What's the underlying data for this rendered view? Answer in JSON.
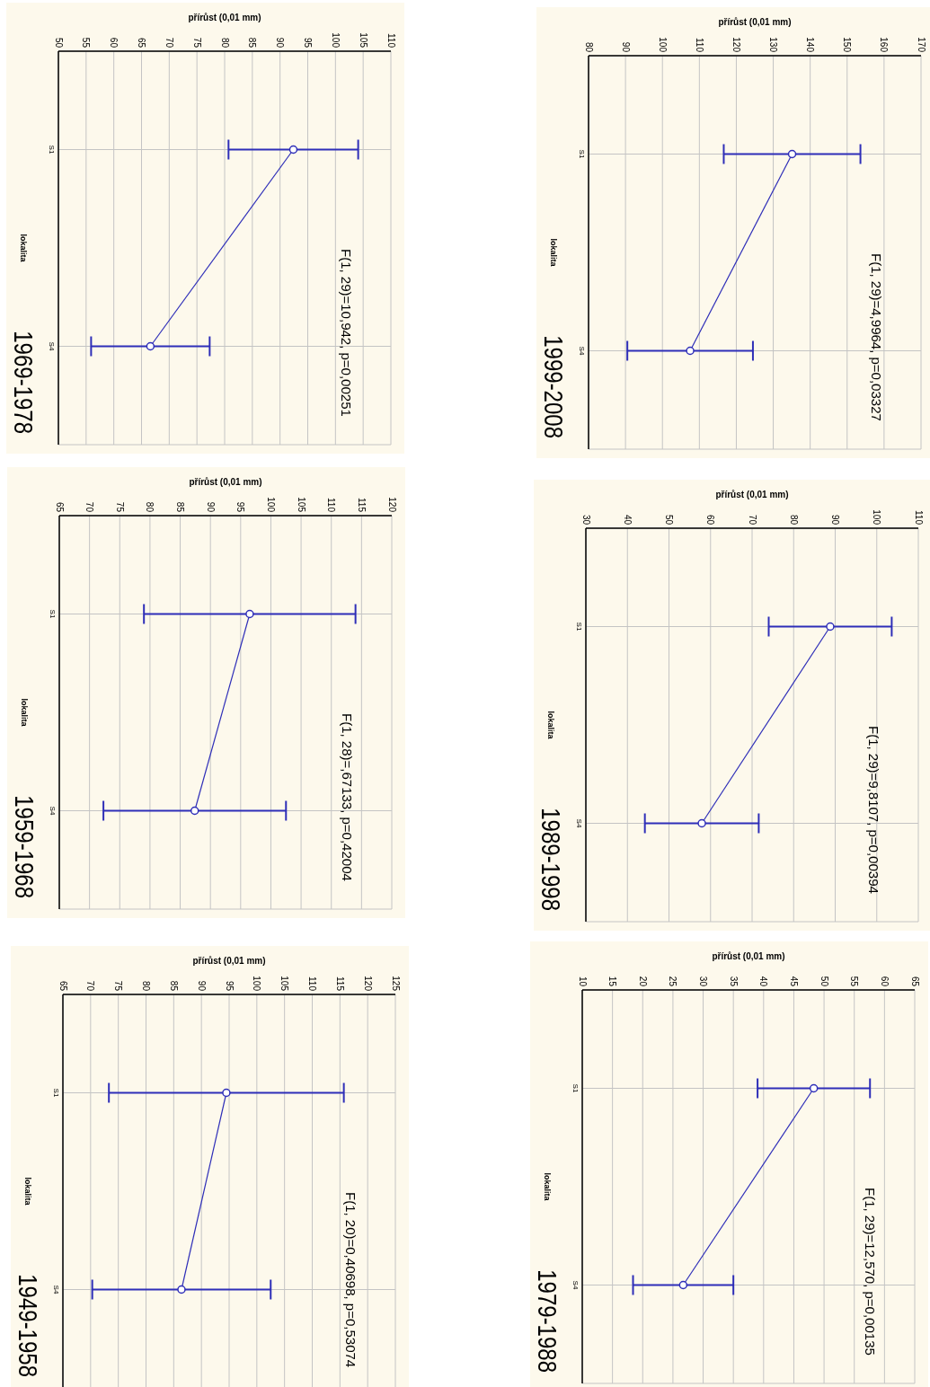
{
  "chart_data": [
    {
      "type": "line",
      "orientation": "horizontal",
      "title": "1999-2008",
      "xlabel": "přírůst (0,01 mm)",
      "ylabel": "lokalita",
      "annotations": [
        "F(1, 29)=4,9964, p=0,03327"
      ],
      "categories": [
        "S1",
        "S4"
      ],
      "values": [
        135.1,
        107.5
      ],
      "errors": [
        18.5,
        17.0
      ],
      "color": "#2e2eb8",
      "xlim": [
        80,
        170
      ],
      "xticks": [
        80,
        90,
        100,
        110,
        120,
        130,
        140,
        150,
        160,
        170
      ],
      "grid": true,
      "marker": "circle"
    },
    {
      "type": "line",
      "orientation": "horizontal",
      "title": "1989-1998",
      "xlabel": "přírůst (0,01 mm)",
      "ylabel": "lokalita",
      "annotations": [
        "F(1, 29)=9,8107, p=0,00394"
      ],
      "categories": [
        "S1",
        "S4"
      ],
      "values": [
        88.8,
        57.9
      ],
      "errors": [
        14.8,
        13.7
      ],
      "color": "#2e2eb8",
      "xlim": [
        30,
        110
      ],
      "xticks": [
        30,
        40,
        50,
        60,
        70,
        80,
        90,
        100,
        110
      ],
      "grid": true,
      "marker": "circle"
    },
    {
      "type": "line",
      "orientation": "horizontal",
      "title": "1979-1988",
      "xlabel": "přírůst (0,01 mm)",
      "ylabel": "lokalita",
      "annotations": [
        "F(1, 29)=12,570, p=0,00135"
      ],
      "categories": [
        "S1",
        "S4"
      ],
      "values": [
        48.3,
        26.7
      ],
      "errors": [
        9.3,
        8.3
      ],
      "color": "#2e2eb8",
      "xlim": [
        10,
        65
      ],
      "xticks": [
        10,
        15,
        20,
        25,
        30,
        35,
        40,
        45,
        50,
        55,
        60,
        65
      ],
      "grid": true,
      "marker": "circle"
    },
    {
      "type": "line",
      "orientation": "horizontal",
      "title": "1969-1978",
      "xlabel": "přírůst (0,01 mm)",
      "ylabel": "lokalita",
      "annotations": [
        "F(1, 29)=10,942, p=0,00251"
      ],
      "categories": [
        "S1",
        "S4"
      ],
      "values": [
        92.4,
        66.6
      ],
      "errors": [
        11.7,
        10.7
      ],
      "color": "#2e2eb8",
      "xlim": [
        50,
        110
      ],
      "xticks": [
        50,
        55,
        60,
        65,
        70,
        75,
        80,
        85,
        90,
        95,
        100,
        105,
        110
      ],
      "grid": true,
      "marker": "circle"
    },
    {
      "type": "line",
      "orientation": "horizontal",
      "title": "1959-1968",
      "xlabel": "přírůst (0,01 mm)",
      "ylabel": "lokalita",
      "annotations": [
        "F(1, 28)=,67133, p=0,42004"
      ],
      "categories": [
        "S1",
        "S4"
      ],
      "values": [
        96.5,
        87.4
      ],
      "errors": [
        17.5,
        15.1
      ],
      "color": "#2e2eb8",
      "xlim": [
        65,
        120
      ],
      "xticks": [
        65,
        70,
        75,
        80,
        85,
        90,
        95,
        100,
        105,
        110,
        115,
        120
      ],
      "grid": true,
      "marker": "circle"
    },
    {
      "type": "line",
      "orientation": "horizontal",
      "title": "1949-1958",
      "xlabel": "přírůst (0,01 mm)",
      "ylabel": "lokalita",
      "annotations": [
        "F(1, 20)=0,40698, p=0,53074"
      ],
      "categories": [
        "S1",
        "S4"
      ],
      "values": [
        94.5,
        86.4
      ],
      "errors": [
        21.2,
        16.1
      ],
      "color": "#2e2eb8",
      "xlim": [
        65,
        125
      ],
      "xticks": [
        65,
        70,
        75,
        80,
        85,
        90,
        95,
        100,
        105,
        110,
        115,
        120,
        125
      ],
      "grid": true,
      "marker": "circle"
    }
  ]
}
